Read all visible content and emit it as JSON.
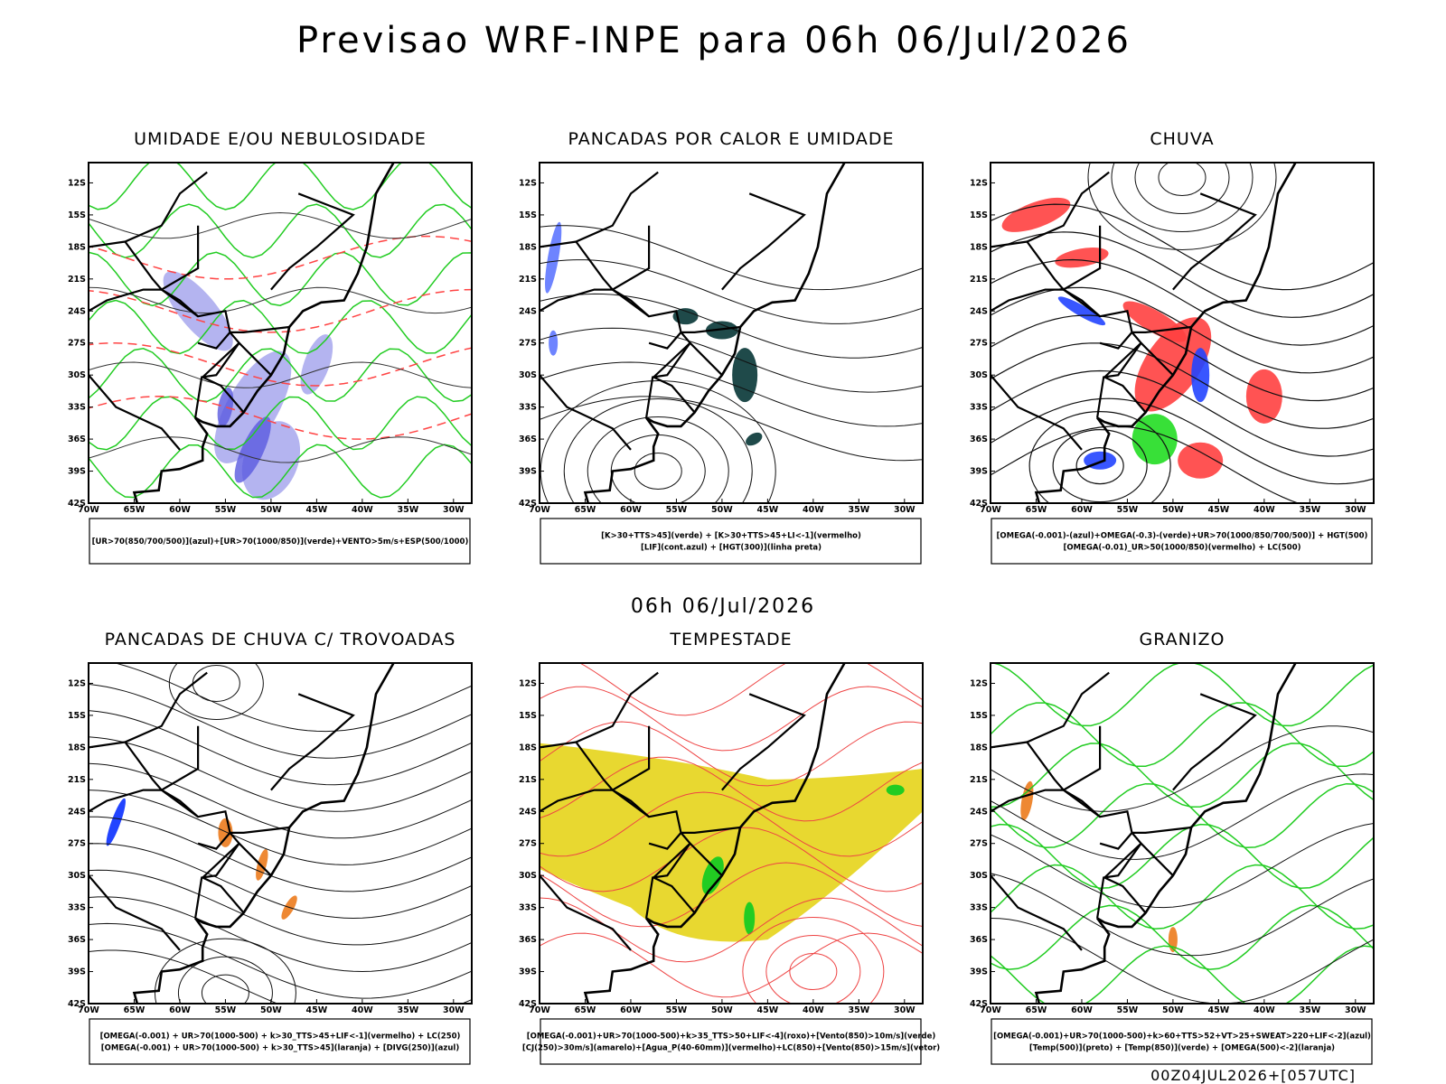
{
  "header": {
    "title": "Previsao WRF-INPE  para 06h 06/Jul/2026",
    "subtitle": "06h 06/Jul/2026"
  },
  "axes": {
    "lat_labels": [
      "12S",
      "15S",
      "18S",
      "21S",
      "24S",
      "27S",
      "30S",
      "33S",
      "36S",
      "39S",
      "42S"
    ],
    "lon_labels": [
      "70W",
      "65W",
      "60W",
      "55W",
      "50W",
      "45W",
      "40W",
      "35W",
      "30W"
    ]
  },
  "panels": [
    {
      "title": "UMIDADE E/OU NEBULOSIDADE",
      "legend": [
        "[UR>70(850/700/500)](azul)+[UR>70(1000/850)](verde)+VENTO>5m/s+ESP(500/1000)"
      ]
    },
    {
      "title": "PANCADAS POR CALOR E UMIDADE",
      "legend": [
        "[K>30+TTS>45](verde) + [K>30+TTS>45+LI<-1](vermelho)",
        "[LIF](cont.azul) + [HGT(300)](linha preta)"
      ]
    },
    {
      "title": "CHUVA",
      "legend": [
        "[OMEGA(-0.001)-(azul)+OMEGA(-0.3)-(verde)+UR>70(1000/850/700/500)] + HGT(500)",
        "[OMEGA(-0.01)_UR>50(1000/850)(vermelho) + LC(500)"
      ]
    },
    {
      "title": "PANCADAS DE CHUVA C/ TROVOADAS",
      "legend": [
        "[OMEGA(-0.001) + UR>70(1000-500) + k>30_TTS>45+LIF<-1](vermelho) + LC(250)",
        "[OMEGA(-0.001) + UR>70(1000-500) + k>30_TTS>45](laranja) + [DIVG(250)](azul)"
      ]
    },
    {
      "title": "TEMPESTADE",
      "legend": [
        "[OMEGA(-0.001)+UR>70(1000-500)+k>35_TTS>50+LIF<-4](roxo)+[Vento(850)>10m/s](verde)",
        "[CJ(250)>30m/s](amarelo)+[Agua_P(40-60mm)](vermelho)+LC(850)+[Vento(850)>15m/s](vetor)"
      ]
    },
    {
      "title": "GRANIZO",
      "legend": [
        "[OMEGA(-0.001)+UR>70(1000-500)+k>60+TTS>52+VT>25+SWEAT>220+LIF<-2](azul)",
        "[Temp(500)](preto) + [Temp(850)](verde) + [OMEGA(500)<-2](laranja)"
      ]
    }
  ],
  "footer": "00Z04JUL2026+[057UTC]"
}
